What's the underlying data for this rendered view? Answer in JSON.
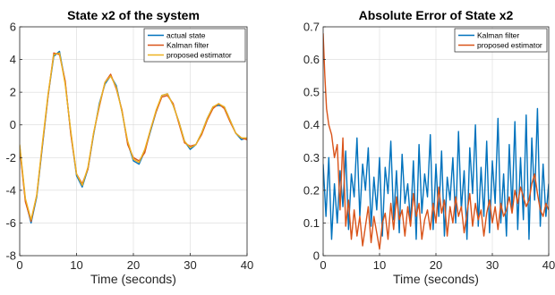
{
  "colors": {
    "blue": "#0072BD",
    "orange": "#D95319",
    "yellow": "#EDB120"
  },
  "chart_data": [
    {
      "id": "left",
      "type": "line",
      "title": "State x2 of the system",
      "xlabel": "Time (seconds)",
      "ylabel": "",
      "xlim": [
        0,
        40
      ],
      "ylim": [
        -8,
        6
      ],
      "xticks": [
        0,
        10,
        20,
        30,
        40
      ],
      "yticks": [
        -8,
        -6,
        -4,
        -2,
        0,
        2,
        4,
        6
      ],
      "grid": true,
      "legend_position": "top-right",
      "series": [
        {
          "name": "actual state",
          "color": "#0072BD",
          "x": [
            0,
            1,
            2,
            3,
            4,
            5,
            6,
            7,
            8,
            9,
            10,
            11,
            12,
            13,
            14,
            15,
            16,
            17,
            18,
            19,
            20,
            21,
            22,
            23,
            24,
            25,
            26,
            27,
            28,
            29,
            30,
            31,
            32,
            33,
            34,
            35,
            36,
            37,
            38,
            39,
            40
          ],
          "y": [
            -1.3,
            -4.6,
            -6.0,
            -4.4,
            -1.3,
            1.8,
            4.2,
            4.5,
            2.6,
            -0.5,
            -3.1,
            -3.8,
            -2.7,
            -0.6,
            1.3,
            2.5,
            3.0,
            2.4,
            0.8,
            -1.1,
            -2.2,
            -2.4,
            -1.6,
            -0.4,
            0.8,
            1.8,
            1.9,
            1.2,
            0.2,
            -1.0,
            -1.5,
            -1.2,
            -0.5,
            0.4,
            1.1,
            1.2,
            1.1,
            0.3,
            -0.5,
            -0.9,
            -0.8
          ]
        },
        {
          "name": "Kalman filter",
          "color": "#D95319",
          "x": [
            0,
            1,
            2,
            3,
            4,
            5,
            6,
            7,
            8,
            9,
            10,
            11,
            12,
            13,
            14,
            15,
            16,
            17,
            18,
            19,
            20,
            21,
            22,
            23,
            24,
            25,
            26,
            27,
            28,
            29,
            30,
            31,
            32,
            33,
            34,
            35,
            36,
            37,
            38,
            39,
            40
          ],
          "y": [
            -1.4,
            -4.7,
            -5.9,
            -4.3,
            -1.2,
            1.8,
            4.4,
            4.3,
            2.7,
            -0.6,
            -3.0,
            -3.6,
            -2.7,
            -0.5,
            1.1,
            2.6,
            3.1,
            2.2,
            0.9,
            -1.2,
            -2.0,
            -2.2,
            -1.7,
            -0.3,
            0.8,
            1.7,
            1.8,
            1.3,
            0.1,
            -1.1,
            -1.3,
            -1.2,
            -0.6,
            0.3,
            1.0,
            1.3,
            1.0,
            0.2,
            -0.5,
            -0.8,
            -0.9
          ]
        },
        {
          "name": "proposed estimator",
          "color": "#EDB120",
          "x": [
            0,
            1,
            2,
            3,
            4,
            5,
            6,
            7,
            8,
            9,
            10,
            11,
            12,
            13,
            14,
            15,
            16,
            17,
            18,
            19,
            20,
            21,
            22,
            23,
            24,
            25,
            26,
            27,
            28,
            29,
            30,
            31,
            32,
            33,
            34,
            35,
            36,
            37,
            38,
            39,
            40
          ],
          "y": [
            -1.2,
            -4.5,
            -5.8,
            -4.3,
            -1.1,
            1.9,
            4.3,
            4.4,
            2.5,
            -0.4,
            -3.0,
            -3.7,
            -2.6,
            -0.5,
            1.2,
            2.6,
            3.0,
            2.3,
            0.8,
            -1.0,
            -2.1,
            -2.3,
            -1.5,
            -0.3,
            0.9,
            1.8,
            1.9,
            1.2,
            0.2,
            -1.0,
            -1.4,
            -1.2,
            -0.5,
            0.4,
            1.1,
            1.3,
            1.1,
            0.3,
            -0.5,
            -0.8,
            -0.8
          ]
        }
      ]
    },
    {
      "id": "right",
      "type": "line",
      "title": "Absolute Error of State x2",
      "xlabel": "Time (seconds)",
      "ylabel": "",
      "xlim": [
        0,
        40
      ],
      "ylim": [
        0,
        0.7
      ],
      "xticks": [
        0,
        10,
        20,
        30,
        40
      ],
      "yticks": [
        0,
        0.1,
        0.2,
        0.3,
        0.4,
        0.5,
        0.6,
        0.7
      ],
      "grid": true,
      "legend_position": "top-right",
      "series": [
        {
          "name": "Kalman filter",
          "color": "#0072BD",
          "x": [
            0,
            0.5,
            1,
            1.5,
            2,
            2.5,
            3,
            3.5,
            4,
            4.5,
            5,
            5.5,
            6,
            6.5,
            7,
            7.5,
            8,
            8.5,
            9,
            9.5,
            10,
            10.5,
            11,
            11.5,
            12,
            12.5,
            13,
            13.5,
            14,
            14.5,
            15,
            15.5,
            16,
            16.5,
            17,
            17.5,
            18,
            18.5,
            19,
            19.5,
            20,
            20.5,
            21,
            21.5,
            22,
            22.5,
            23,
            23.5,
            24,
            24.5,
            25,
            25.5,
            26,
            26.5,
            27,
            27.5,
            28,
            28.5,
            29,
            29.5,
            30,
            30.5,
            31,
            31.5,
            32,
            32.5,
            33,
            33.5,
            34,
            34.5,
            35,
            35.5,
            36,
            36.5,
            37,
            37.5,
            38,
            38.5,
            39,
            39.5,
            40
          ],
          "y": [
            0.28,
            0.12,
            0.3,
            0.05,
            0.22,
            0.1,
            0.26,
            0.15,
            0.32,
            0.08,
            0.25,
            0.18,
            0.36,
            0.12,
            0.28,
            0.2,
            0.33,
            0.09,
            0.24,
            0.14,
            0.3,
            0.06,
            0.27,
            0.19,
            0.35,
            0.11,
            0.26,
            0.07,
            0.31,
            0.16,
            0.22,
            0.1,
            0.29,
            0.05,
            0.34,
            0.13,
            0.25,
            0.18,
            0.37,
            0.08,
            0.28,
            0.12,
            0.32,
            0.06,
            0.24,
            0.17,
            0.3,
            0.1,
            0.38,
            0.14,
            0.26,
            0.05,
            0.33,
            0.19,
            0.4,
            0.09,
            0.27,
            0.12,
            0.35,
            0.07,
            0.29,
            0.16,
            0.42,
            0.1,
            0.25,
            0.06,
            0.34,
            0.14,
            0.41,
            0.08,
            0.3,
            0.11,
            0.43,
            0.05,
            0.36,
            0.17,
            0.45,
            0.09,
            0.28,
            0.12,
            0.22
          ]
        },
        {
          "name": "proposed estimator",
          "color": "#D95319",
          "x": [
            0,
            0.3,
            0.6,
            1,
            1.5,
            2,
            2.5,
            3,
            3.5,
            4,
            4.5,
            5,
            5.5,
            6,
            6.5,
            7,
            7.5,
            8,
            8.5,
            9,
            9.5,
            10,
            10.5,
            11,
            11.5,
            12,
            12.5,
            13,
            13.5,
            14,
            14.5,
            15,
            15.5,
            16,
            16.5,
            17,
            17.5,
            18,
            18.5,
            19,
            19.5,
            20,
            20.5,
            21,
            21.5,
            22,
            22.5,
            23,
            23.5,
            24,
            24.5,
            25,
            25.5,
            26,
            26.5,
            27,
            27.5,
            28,
            28.5,
            29,
            29.5,
            30,
            30.5,
            31,
            31.5,
            32,
            32.5,
            33,
            33.5,
            34,
            34.5,
            35,
            35.5,
            36,
            36.5,
            37,
            37.5,
            38,
            38.5,
            39,
            39.5,
            40
          ],
          "y": [
            0.68,
            0.55,
            0.45,
            0.4,
            0.37,
            0.3,
            0.34,
            0.14,
            0.36,
            0.09,
            0.17,
            0.05,
            0.14,
            0.06,
            0.12,
            0.03,
            0.09,
            0.15,
            0.04,
            0.12,
            0.07,
            0.02,
            0.1,
            0.13,
            0.05,
            0.16,
            0.08,
            0.18,
            0.11,
            0.14,
            0.06,
            0.15,
            0.09,
            0.19,
            0.12,
            0.16,
            0.05,
            0.11,
            0.14,
            0.08,
            0.16,
            0.1,
            0.21,
            0.13,
            0.17,
            0.06,
            0.15,
            0.1,
            0.18,
            0.12,
            0.15,
            0.07,
            0.13,
            0.19,
            0.09,
            0.16,
            0.11,
            0.14,
            0.06,
            0.13,
            0.17,
            0.1,
            0.15,
            0.08,
            0.16,
            0.12,
            0.14,
            0.18,
            0.13,
            0.2,
            0.16,
            0.21,
            0.18,
            0.15,
            0.17,
            0.22,
            0.25,
            0.19,
            0.14,
            0.12,
            0.16,
            0.14
          ]
        }
      ]
    }
  ]
}
